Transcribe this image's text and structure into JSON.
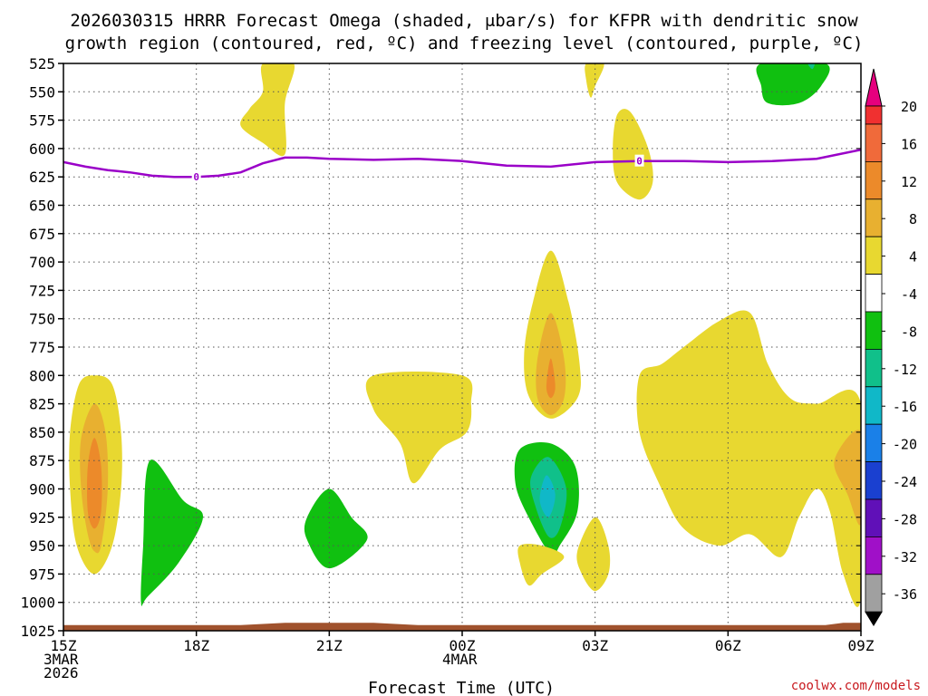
{
  "chart_data": {
    "type": "heatmap",
    "title_line1": "2026030315 HRRR Forecast Omega (shaded, μbar/s) for KFPR with dendritic snow",
    "title_line2": "growth region (contoured, red, ºC) and freezing level (contoured, purple, ºC)",
    "xlabel": "Forecast Time (UTC)",
    "credit": "coolwx.com/models",
    "x_range": [
      15,
      33
    ],
    "y_range": [
      525,
      1025
    ],
    "x_ticks": [
      {
        "x": 15,
        "lines": [
          "15Z",
          "3MAR",
          "2026"
        ]
      },
      {
        "x": 18,
        "lines": [
          "18Z"
        ]
      },
      {
        "x": 21,
        "lines": [
          "21Z"
        ]
      },
      {
        "x": 24,
        "lines": [
          "00Z",
          "4MAR"
        ]
      },
      {
        "x": 27,
        "lines": [
          "03Z"
        ]
      },
      {
        "x": 30,
        "lines": [
          "06Z"
        ]
      },
      {
        "x": 33,
        "lines": [
          "09Z"
        ]
      }
    ],
    "y_ticks": [
      "525",
      "550",
      "575",
      "600",
      "625",
      "650",
      "675",
      "700",
      "725",
      "750",
      "775",
      "800",
      "825",
      "850",
      "875",
      "900",
      "925",
      "950",
      "975",
      "1000",
      "1025"
    ],
    "colorbar": {
      "labels": [
        "20",
        "16",
        "12",
        "8",
        "4",
        "-4",
        "-8",
        "-12",
        "-16",
        "-20",
        "-24",
        "-28",
        "-32",
        "-36"
      ],
      "top_color": "#e6007e",
      "bottom_color": "#000000",
      "colors": [
        "#f03030",
        "#f06a3a",
        "#ec8a2a",
        "#e8b030",
        "#e8d830",
        "#ffffff",
        "#10c010",
        "#10c08a",
        "#10b8c8",
        "#1a80e8",
        "#1a40d0",
        "#6010b8",
        "#a010c8",
        "#a0a0a0"
      ]
    },
    "freezing_level": {
      "color": "#9a00c8",
      "label": "0",
      "points": [
        [
          15,
          612
        ],
        [
          15.5,
          616
        ],
        [
          16,
          619
        ],
        [
          16.5,
          621
        ],
        [
          17,
          624
        ],
        [
          17.5,
          625
        ],
        [
          18,
          625
        ],
        [
          18.5,
          624
        ],
        [
          19,
          621
        ],
        [
          19.5,
          613
        ],
        [
          20,
          608
        ],
        [
          20.5,
          608
        ],
        [
          21,
          609
        ],
        [
          22,
          610
        ],
        [
          23,
          609
        ],
        [
          24,
          611
        ],
        [
          25,
          615
        ],
        [
          26,
          616
        ],
        [
          27,
          612
        ],
        [
          28,
          611
        ],
        [
          29,
          611
        ],
        [
          30,
          612
        ],
        [
          31,
          611
        ],
        [
          32,
          609
        ],
        [
          33,
          601
        ]
      ],
      "label_points": [
        [
          18,
          625
        ],
        [
          28,
          611
        ]
      ]
    },
    "ground": {
      "color": "#a0522d",
      "points": [
        [
          15,
          1020
        ],
        [
          19,
          1020
        ],
        [
          20,
          1018
        ],
        [
          22,
          1018
        ],
        [
          23,
          1020
        ],
        [
          32.2,
          1020
        ],
        [
          32.6,
          1018
        ],
        [
          33,
          1018
        ]
      ]
    },
    "regions": [
      {
        "name": "pos-4-a",
        "color": "#e8d830",
        "points": [
          [
            15.7,
            800
          ],
          [
            16.1,
            808
          ],
          [
            16.3,
            850
          ],
          [
            16.3,
            900
          ],
          [
            16.1,
            950
          ],
          [
            15.7,
            975
          ],
          [
            15.3,
            950
          ],
          [
            15.15,
            900
          ],
          [
            15.15,
            850
          ],
          [
            15.35,
            808
          ]
        ]
      },
      {
        "name": "pos-8-a",
        "color": "#e8b030",
        "points": [
          [
            15.7,
            825
          ],
          [
            15.95,
            850
          ],
          [
            16.0,
            900
          ],
          [
            15.85,
            950
          ],
          [
            15.7,
            955
          ],
          [
            15.55,
            940
          ],
          [
            15.4,
            900
          ],
          [
            15.4,
            855
          ]
        ]
      },
      {
        "name": "pos-12-a",
        "color": "#ec8a2a",
        "points": [
          [
            15.7,
            855
          ],
          [
            15.85,
            880
          ],
          [
            15.85,
            920
          ],
          [
            15.7,
            935
          ],
          [
            15.55,
            920
          ],
          [
            15.55,
            880
          ]
        ]
      },
      {
        "name": "neg-4-a",
        "color": "#10c010",
        "points": [
          [
            16.95,
            875
          ],
          [
            17.7,
            910
          ],
          [
            18.15,
            925
          ],
          [
            17.6,
            965
          ],
          [
            16.9,
            995
          ],
          [
            16.75,
            1000
          ],
          [
            16.8,
            950
          ]
        ]
      },
      {
        "name": "neg-4-b",
        "color": "#10c010",
        "points": [
          [
            21.0,
            900
          ],
          [
            21.5,
            925
          ],
          [
            21.85,
            945
          ],
          [
            21.0,
            970
          ],
          [
            20.5,
            945
          ],
          [
            20.5,
            925
          ]
        ]
      },
      {
        "name": "pos-4-b",
        "color": "#e8d830",
        "points": [
          [
            19.5,
            525
          ],
          [
            20.2,
            525
          ],
          [
            20.0,
            560
          ],
          [
            20.0,
            605
          ],
          [
            19.5,
            595
          ],
          [
            19.0,
            580
          ],
          [
            19.2,
            565
          ],
          [
            19.5,
            550
          ]
        ]
      },
      {
        "name": "pos-4-c",
        "color": "#e8d830",
        "points": [
          [
            26.8,
            525
          ],
          [
            27.2,
            525
          ],
          [
            27.0,
            545
          ],
          [
            26.9,
            555
          ],
          [
            26.8,
            540
          ]
        ]
      },
      {
        "name": "pos-4-d",
        "color": "#e8d830",
        "points": [
          [
            27.5,
            570
          ],
          [
            27.8,
            568
          ],
          [
            28.2,
            600
          ],
          [
            28.3,
            630
          ],
          [
            28.0,
            645
          ],
          [
            27.5,
            630
          ],
          [
            27.4,
            600
          ]
        ]
      },
      {
        "name": "pos-4-e",
        "color": "#e8d830",
        "points": [
          [
            22.0,
            800
          ],
          [
            24.0,
            800
          ],
          [
            24.2,
            825
          ],
          [
            24.1,
            850
          ],
          [
            23.5,
            865
          ],
          [
            22.9,
            895
          ],
          [
            22.6,
            860
          ],
          [
            22.0,
            830
          ]
        ]
      },
      {
        "name": "pos-4-f",
        "color": "#e8d830",
        "points": [
          [
            26.0,
            690
          ],
          [
            26.4,
            735
          ],
          [
            26.65,
            790
          ],
          [
            26.6,
            820
          ],
          [
            26.0,
            838
          ],
          [
            25.5,
            818
          ],
          [
            25.4,
            780
          ],
          [
            25.6,
            735
          ]
        ]
      },
      {
        "name": "pos-8-b",
        "color": "#e8b030",
        "points": [
          [
            26.0,
            745
          ],
          [
            26.3,
            785
          ],
          [
            26.3,
            820
          ],
          [
            26.0,
            835
          ],
          [
            25.7,
            820
          ],
          [
            25.7,
            785
          ]
        ]
      },
      {
        "name": "pos-12-b",
        "color": "#ec8a2a",
        "points": [
          [
            26.0,
            785
          ],
          [
            26.1,
            810
          ],
          [
            26.0,
            820
          ],
          [
            25.9,
            810
          ]
        ]
      },
      {
        "name": "neg-4-c",
        "color": "#10c010",
        "points": [
          [
            26.0,
            860
          ],
          [
            26.55,
            880
          ],
          [
            26.6,
            920
          ],
          [
            26.2,
            950
          ],
          [
            26.0,
            958
          ],
          [
            25.5,
            925
          ],
          [
            25.2,
            895
          ],
          [
            25.3,
            865
          ]
        ]
      },
      {
        "name": "neg-8-c",
        "color": "#10c08a",
        "points": [
          [
            25.95,
            872
          ],
          [
            26.35,
            900
          ],
          [
            26.2,
            935
          ],
          [
            25.95,
            942
          ],
          [
            25.65,
            915
          ],
          [
            25.55,
            890
          ]
        ]
      },
      {
        "name": "neg-12-c",
        "color": "#10b8c8",
        "points": [
          [
            25.9,
            888
          ],
          [
            26.1,
            905
          ],
          [
            25.95,
            925
          ],
          [
            25.75,
            910
          ]
        ]
      },
      {
        "name": "pos-4-g",
        "color": "#e8d830",
        "points": [
          [
            25.8,
            950
          ],
          [
            26.3,
            960
          ],
          [
            25.8,
            975
          ],
          [
            25.5,
            985
          ],
          [
            25.3,
            965
          ],
          [
            25.3,
            950
          ]
        ]
      },
      {
        "name": "pos-4-h",
        "color": "#e8d830",
        "points": [
          [
            27.0,
            925
          ],
          [
            27.3,
            950
          ],
          [
            27.3,
            975
          ],
          [
            27.0,
            990
          ],
          [
            26.7,
            975
          ],
          [
            26.6,
            955
          ]
        ]
      },
      {
        "name": "pos-4-i",
        "color": "#e8d830",
        "points": [
          [
            29.0,
            775
          ],
          [
            29.8,
            752
          ],
          [
            30.5,
            745
          ],
          [
            30.9,
            790
          ],
          [
            31.4,
            820
          ],
          [
            32.0,
            825
          ],
          [
            33.0,
            825
          ],
          [
            33.0,
            995
          ],
          [
            32.6,
            975
          ],
          [
            32.3,
            920
          ],
          [
            32.0,
            900
          ],
          [
            31.6,
            925
          ],
          [
            31.2,
            960
          ],
          [
            30.5,
            940
          ],
          [
            29.8,
            950
          ],
          [
            29.0,
            935
          ],
          [
            28.5,
            900
          ],
          [
            28.0,
            850
          ],
          [
            28.0,
            800
          ],
          [
            28.5,
            790
          ]
        ]
      },
      {
        "name": "pos-8-i",
        "color": "#e8b030",
        "points": [
          [
            33.0,
            850
          ],
          [
            33.0,
            930
          ],
          [
            32.7,
            905
          ],
          [
            32.4,
            875
          ]
        ]
      },
      {
        "name": "neg-4-d",
        "color": "#10c010",
        "points": [
          [
            30.75,
            525
          ],
          [
            32.2,
            525
          ],
          [
            32.1,
            545
          ],
          [
            31.6,
            560
          ],
          [
            30.9,
            560
          ],
          [
            30.75,
            545
          ]
        ]
      },
      {
        "name": "neg-8-d",
        "color": "#10c08a",
        "points": [
          [
            31.8,
            525
          ],
          [
            31.95,
            525
          ],
          [
            31.9,
            530
          ]
        ]
      }
    ]
  }
}
